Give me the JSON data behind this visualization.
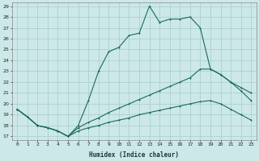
{
  "xlabel": "Humidex (Indice chaleur)",
  "background_color": "#cce8e8",
  "grid_color": "#a8cccc",
  "line_color": "#1a6b5a",
  "series1_y": [
    19.5,
    18.8,
    18.0,
    17.8,
    17.5,
    17.0,
    18.0,
    20.3,
    23.0,
    24.8,
    25.2,
    26.3,
    26.5,
    29.0,
    27.5,
    27.8,
    27.8,
    28.0,
    27.0,
    23.2,
    22.7,
    22.0,
    21.2,
    20.3
  ],
  "series2_y": [
    19.5,
    18.8,
    18.0,
    17.8,
    17.5,
    17.0,
    17.8,
    18.3,
    18.7,
    19.2,
    19.6,
    20.0,
    20.4,
    20.8,
    21.2,
    21.6,
    22.0,
    22.4,
    23.2,
    23.2,
    22.7,
    22.0,
    21.5,
    21.0
  ],
  "series3_y": [
    19.5,
    18.8,
    18.0,
    17.8,
    17.5,
    17.0,
    17.5,
    17.8,
    18.0,
    18.3,
    18.5,
    18.7,
    19.0,
    19.2,
    19.4,
    19.6,
    19.8,
    20.0,
    20.2,
    20.3,
    20.0,
    19.5,
    19.0,
    18.5
  ],
  "ylim_min": 17,
  "ylim_max": 29,
  "xlim_min": 0,
  "xlim_max": 23,
  "yticks": [
    17,
    18,
    19,
    20,
    21,
    22,
    23,
    24,
    25,
    26,
    27,
    28,
    29
  ],
  "xticks": [
    0,
    1,
    2,
    3,
    4,
    5,
    6,
    7,
    8,
    9,
    10,
    11,
    12,
    13,
    14,
    15,
    16,
    17,
    18,
    19,
    20,
    21,
    22,
    23
  ],
  "xlabel_fontsize": 5.5,
  "tick_fontsize": 4.5,
  "marker_size": 2.0,
  "linewidth": 0.8
}
